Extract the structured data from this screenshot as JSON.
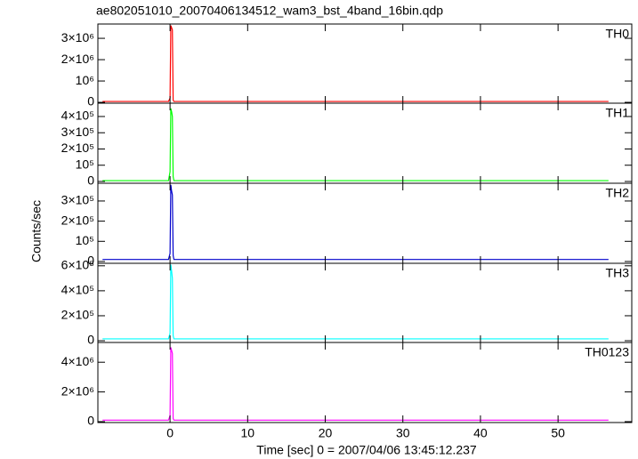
{
  "figure": {
    "title": "ae802051010_20070406134512_wam3_bst_4band_16bin.qdp",
    "xlabel": "Time [sec] 0 = 2007/04/06 13:45:12.237",
    "ylabel": "Counts/sec"
  },
  "chart_data": [
    {
      "type": "line",
      "label": "TH0",
      "ylim": [
        -40000,
        3670000
      ],
      "yticks": [
        {
          "value": 0,
          "label": "0"
        },
        {
          "value": 1000000,
          "label": "10⁶"
        },
        {
          "value": 2000000,
          "label": "2×10⁶"
        },
        {
          "value": 3000000,
          "label": "3×10⁶"
        }
      ],
      "x": [
        -8.7,
        -0.2,
        0,
        0.1,
        0.2,
        0.3,
        0.4,
        0.5,
        0.7,
        56.5
      ],
      "series": [
        {
          "name": "TH0",
          "color": "#ff0000",
          "values": [
            40000,
            40000,
            200000,
            3600000,
            3500000,
            3400000,
            100000,
            40000,
            40000,
            40000
          ]
        }
      ]
    },
    {
      "type": "line",
      "label": "TH1",
      "ylim": [
        -11000,
        482000
      ],
      "yticks": [
        {
          "value": 0,
          "label": "0"
        },
        {
          "value": 100000,
          "label": "10⁵"
        },
        {
          "value": 200000,
          "label": "2×10⁵"
        },
        {
          "value": 300000,
          "label": "3×10⁵"
        },
        {
          "value": 400000,
          "label": "4×10⁵"
        }
      ],
      "x": [
        -8.7,
        -0.2,
        0,
        0.1,
        0.2,
        0.3,
        0.4,
        0.5,
        0.7,
        56.5
      ],
      "series": [
        {
          "name": "TH1",
          "color": "#00ff00",
          "values": [
            5000,
            5000,
            60000,
            450000,
            430000,
            400000,
            30000,
            5000,
            5000,
            5000
          ]
        }
      ]
    },
    {
      "type": "line",
      "label": "TH2",
      "ylim": [
        -9000,
        388000
      ],
      "yticks": [
        {
          "value": 0,
          "label": "0"
        },
        {
          "value": 100000,
          "label": "10⁵"
        },
        {
          "value": 200000,
          "label": "2×10⁵"
        },
        {
          "value": 300000,
          "label": "3×10⁵"
        }
      ],
      "x": [
        -8.7,
        -0.2,
        0,
        0.1,
        0.2,
        0.3,
        0.4,
        0.5,
        0.7,
        56.5
      ],
      "series": [
        {
          "name": "TH2",
          "color": "#0000cc",
          "values": [
            10000,
            10000,
            40000,
            380000,
            350000,
            330000,
            30000,
            10000,
            10000,
            10000
          ]
        }
      ]
    },
    {
      "type": "line",
      "label": "TH3",
      "ylim": [
        -14000,
        620000
      ],
      "yticks": [
        {
          "value": 0,
          "label": "0"
        },
        {
          "value": 200000,
          "label": "2×10⁵"
        },
        {
          "value": 400000,
          "label": "4×10⁵"
        },
        {
          "value": 600000,
          "label": "6×10⁵"
        }
      ],
      "x": [
        -8.7,
        -0.2,
        0,
        0.1,
        0.2,
        0.3,
        0.4,
        0.5,
        0.7,
        56.5
      ],
      "series": [
        {
          "name": "TH3",
          "color": "#00ffff",
          "values": [
            15000,
            15000,
            60000,
            610000,
            560000,
            500000,
            40000,
            15000,
            15000,
            15000
          ]
        }
      ]
    },
    {
      "type": "line",
      "label": "TH0123",
      "ylim": [
        -60000,
        5330000
      ],
      "yticks": [
        {
          "value": 0,
          "label": "0"
        },
        {
          "value": 2000000,
          "label": "2×10⁶"
        },
        {
          "value": 4000000,
          "label": "4×10⁶"
        }
      ],
      "xlim": [
        -9.3,
        59.5
      ],
      "xticks": [
        0,
        10,
        20,
        30,
        40,
        50
      ],
      "x": [
        -8.7,
        -0.2,
        0,
        0.1,
        0.2,
        0.3,
        0.4,
        0.5,
        0.7,
        56.5
      ],
      "series": [
        {
          "name": "TH0123",
          "color": "#ff00ff",
          "values": [
            100000,
            100000,
            400000,
            5000000,
            4800000,
            4600000,
            200000,
            100000,
            100000,
            100000
          ]
        }
      ]
    }
  ]
}
